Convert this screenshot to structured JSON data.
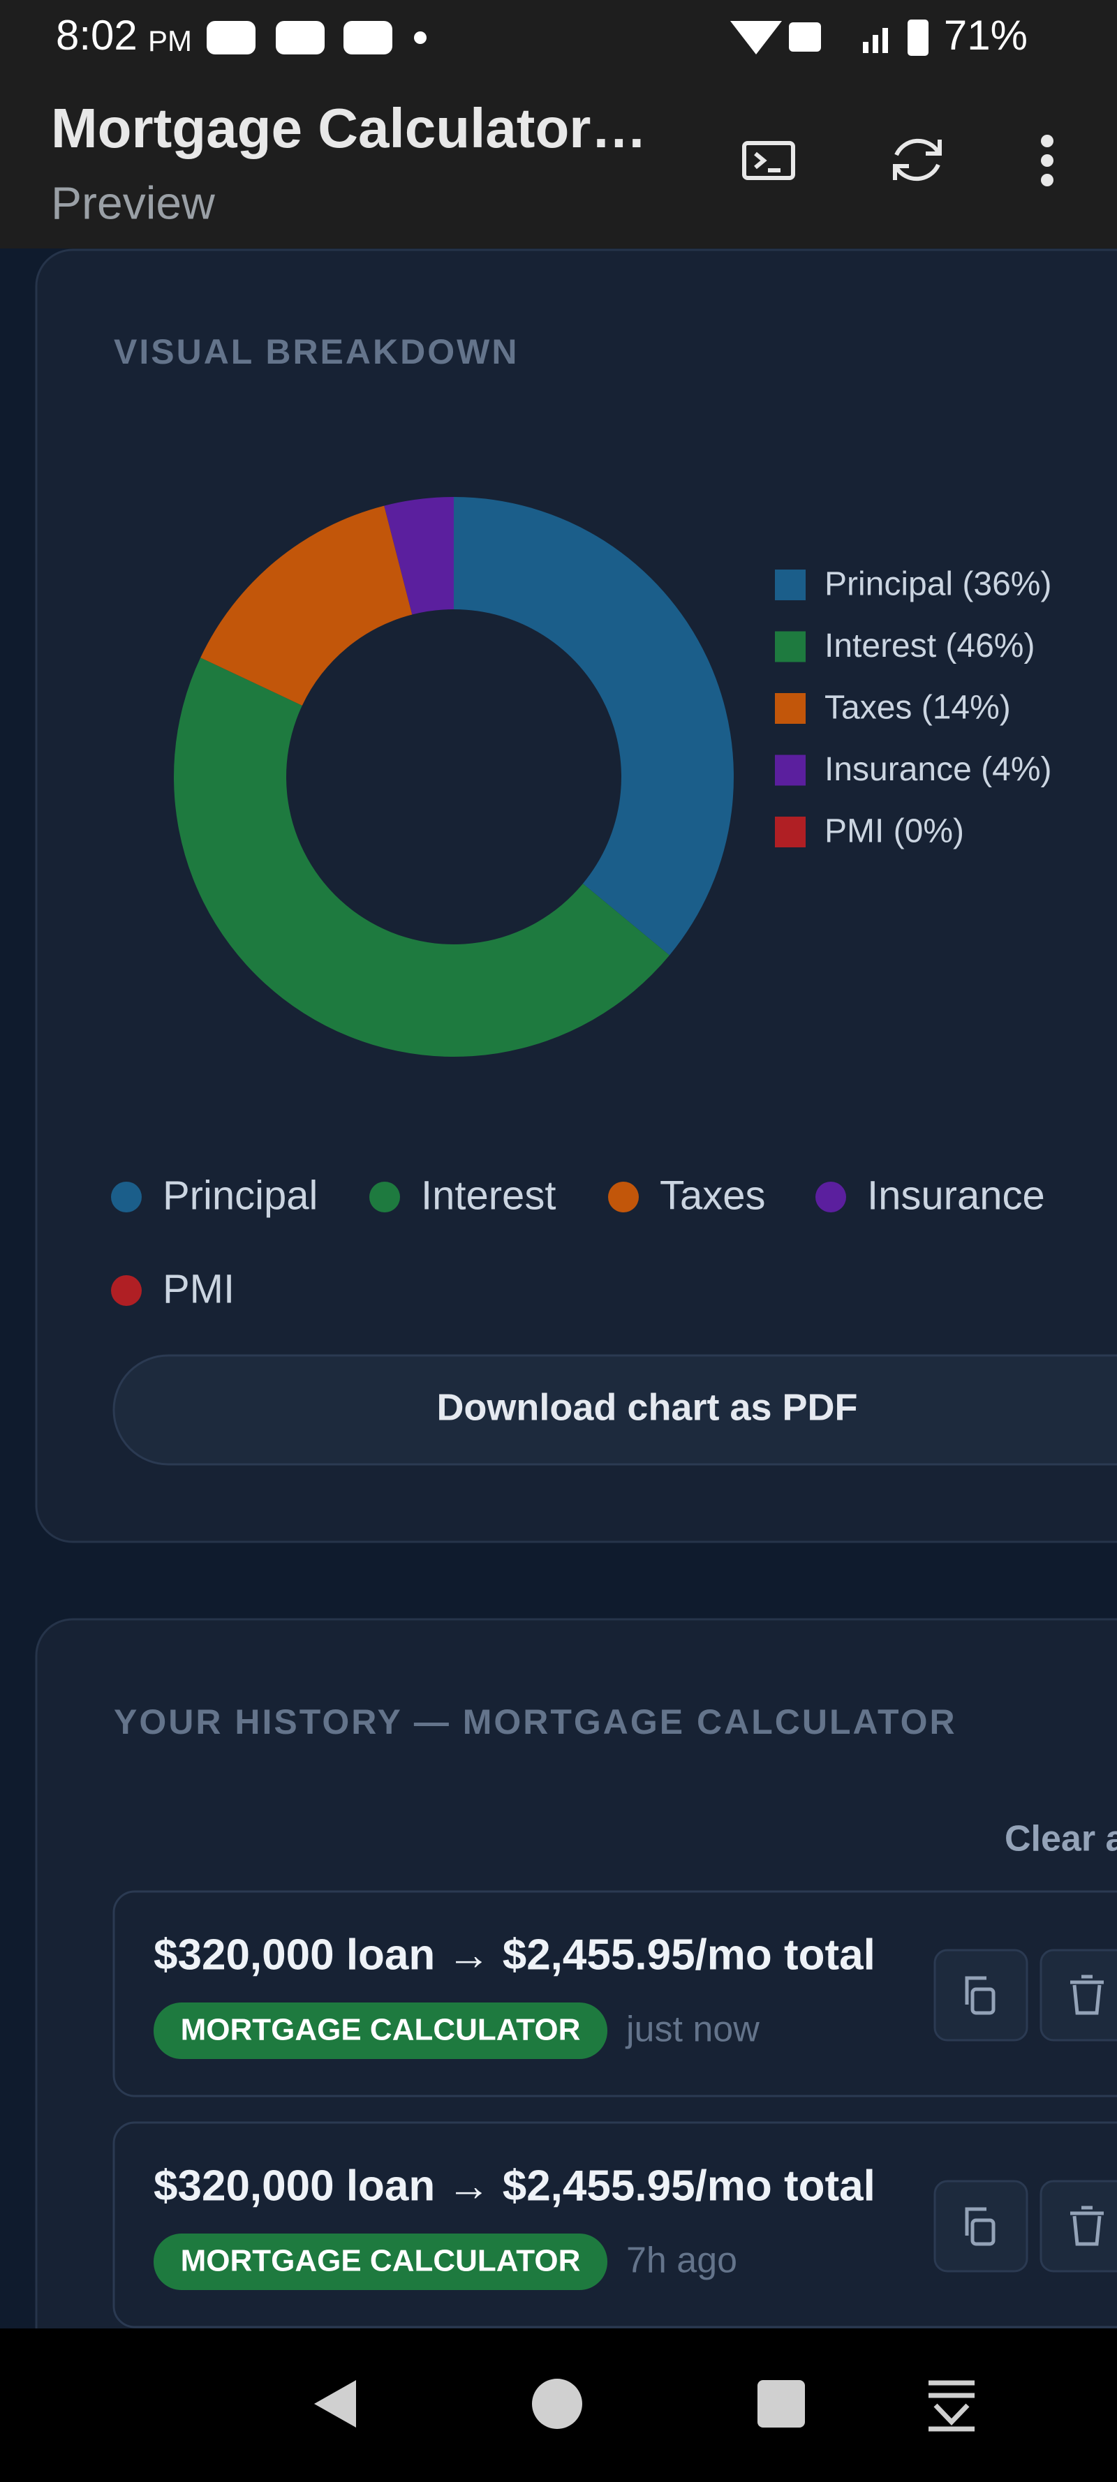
{
  "status_bar": {
    "time": "8:02",
    "ampm": "PM",
    "battery": "71%"
  },
  "app_bar": {
    "title": "Mortgage Calculator…",
    "subtitle": "Preview"
  },
  "breakdown": {
    "heading": "VISUAL BREAKDOWN",
    "chart_data": {
      "type": "pie",
      "donut": true,
      "categories": [
        "Principal",
        "Interest",
        "Taxes",
        "Insurance",
        "PMI"
      ],
      "values": [
        36,
        46,
        14,
        4,
        0
      ],
      "value_labels": [
        "Principal (36%)",
        "Interest (46%)",
        "Taxes (14%)",
        "Insurance (4%)",
        "PMI (0%)"
      ],
      "colors": [
        "#1b5e8a",
        "#1e7a3f",
        "#c2560a",
        "#5b1f9e",
        "#b01f24"
      ]
    },
    "button": "Download chart as PDF"
  },
  "history": {
    "heading": "YOUR HISTORY — MORTGAGE CALCULATOR",
    "clear": "Clear all",
    "items": [
      {
        "summary": "$320,000 loan → $2,455.95/mo total",
        "tag": "MORTGAGE CALCULATOR",
        "time": "just now"
      },
      {
        "summary": "$320,000 loan → $2,455.95/mo total",
        "tag": "MORTGAGE CALCULATOR",
        "time": "7h ago"
      }
    ]
  }
}
